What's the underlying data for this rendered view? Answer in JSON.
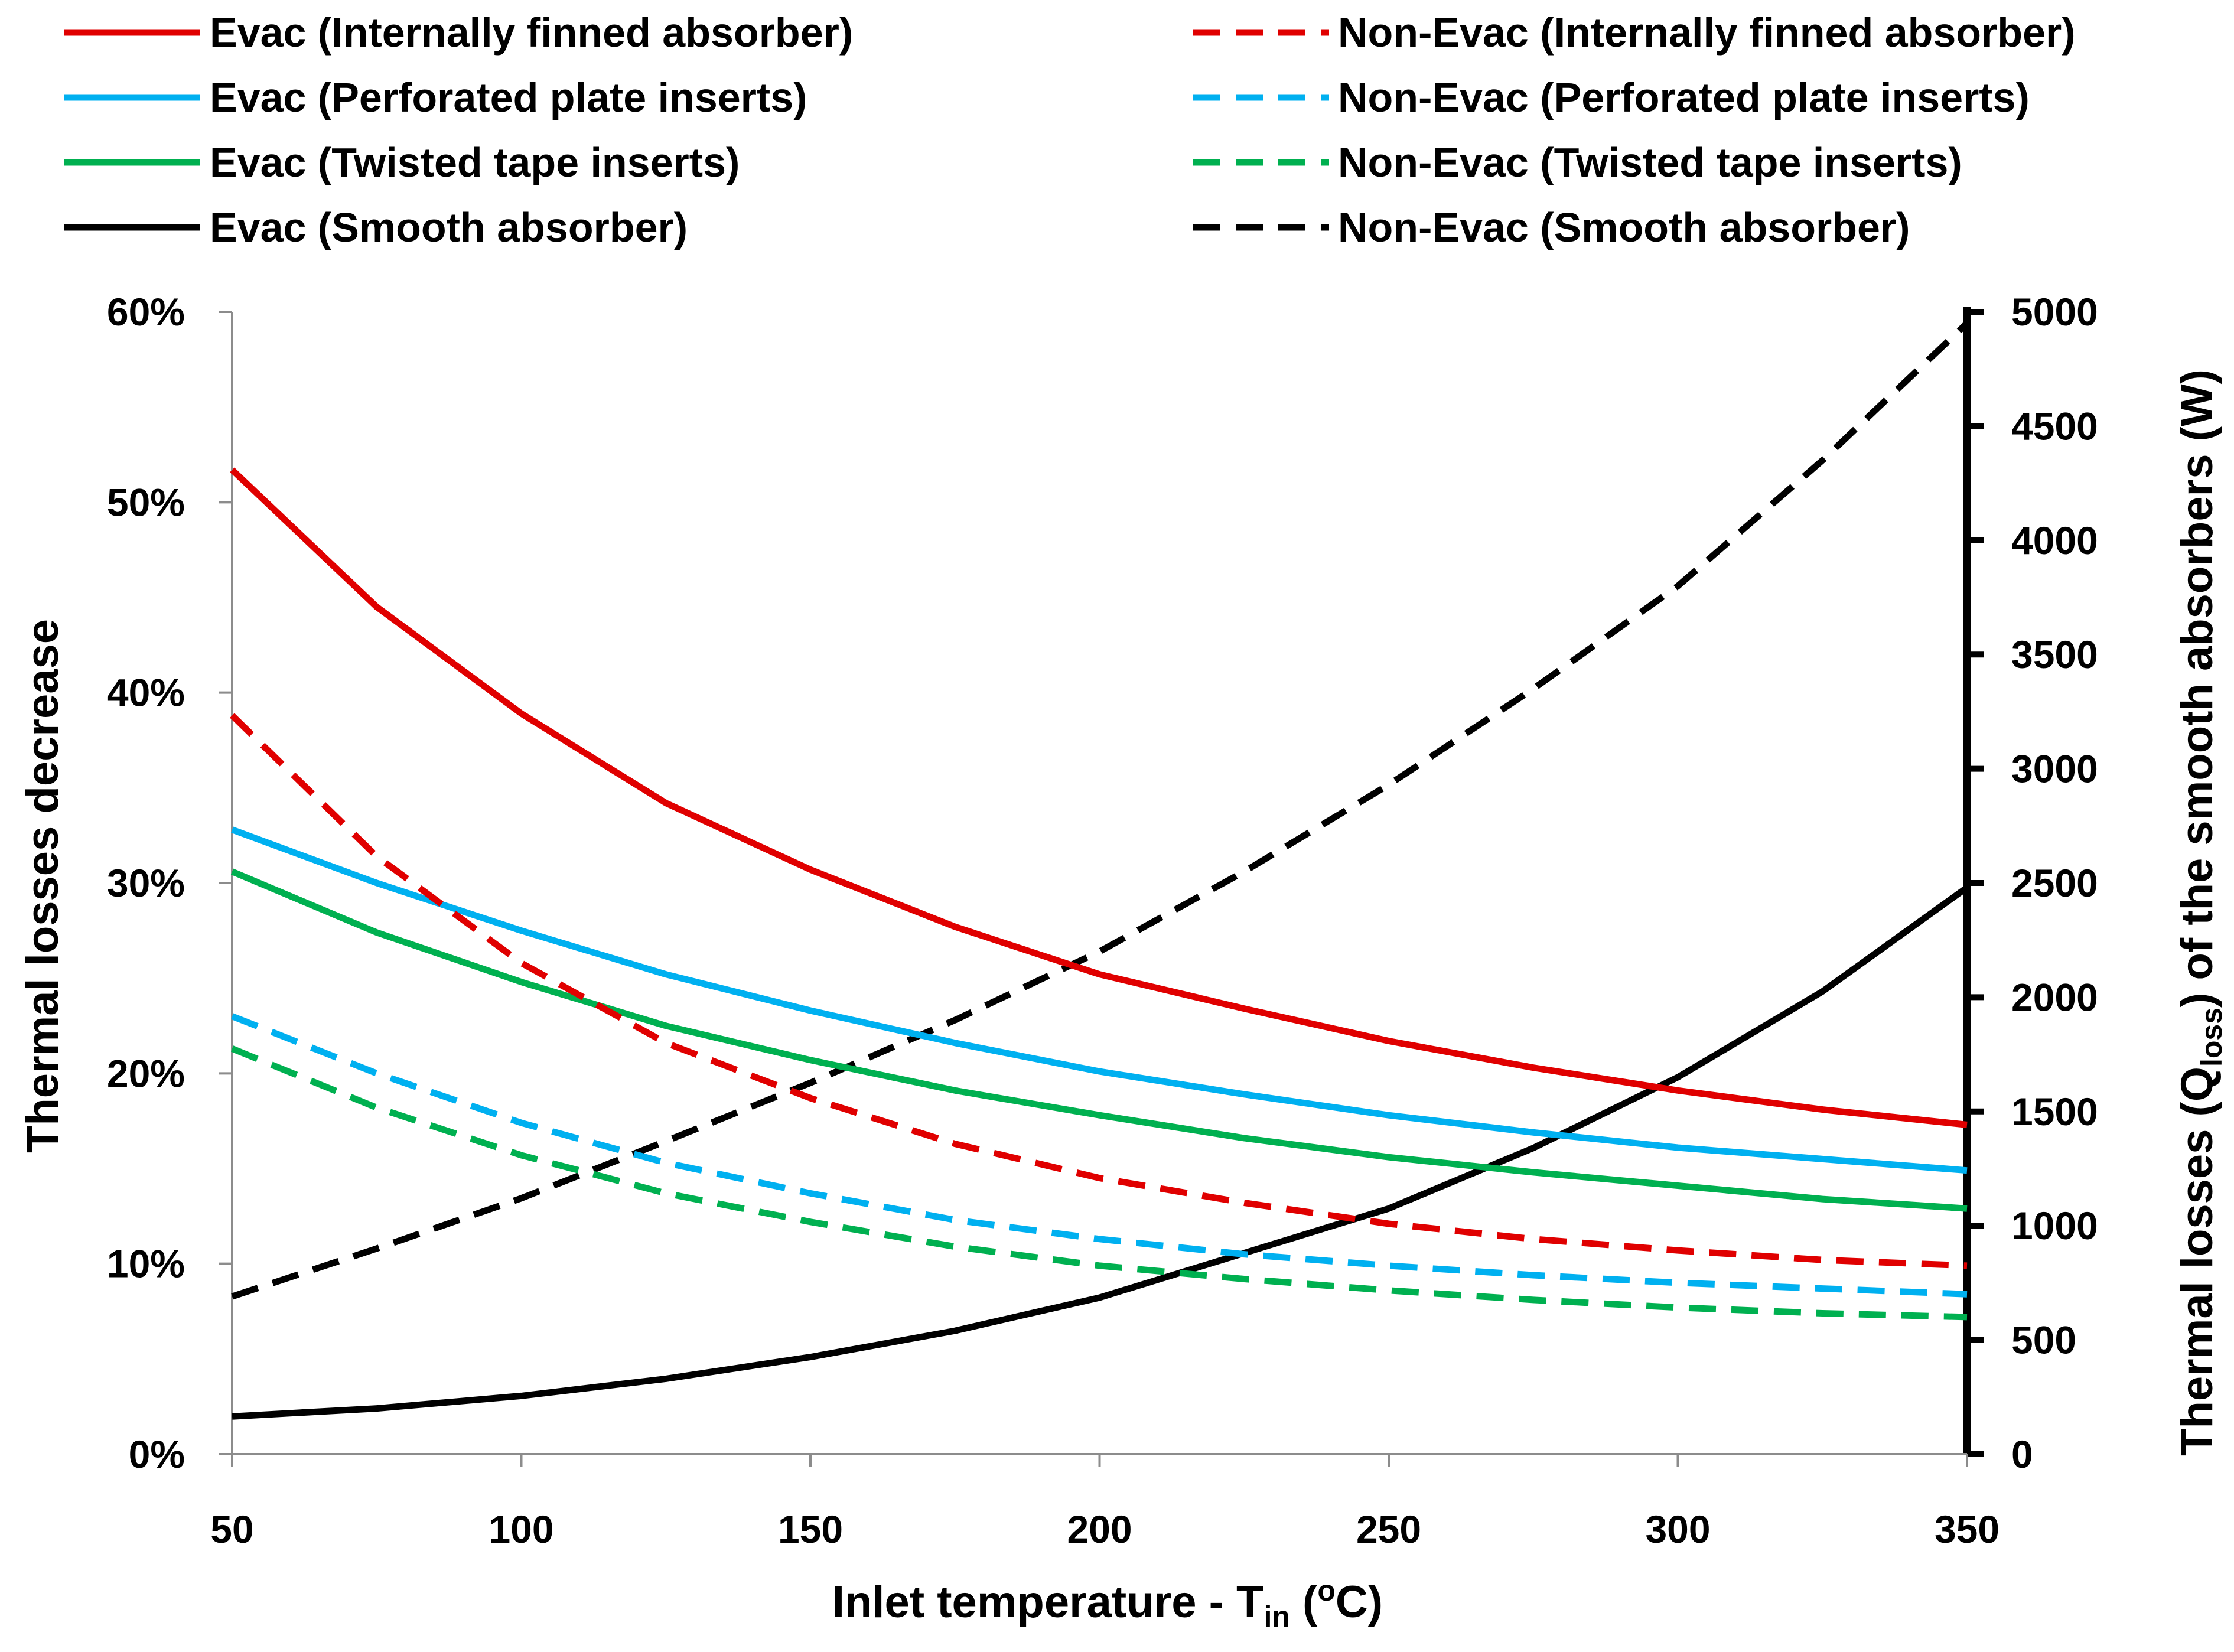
{
  "chart_data": {
    "type": "line",
    "title": "",
    "x": [
      50,
      75,
      100,
      125,
      150,
      175,
      200,
      225,
      250,
      275,
      300,
      325,
      350
    ],
    "xlim": [
      50,
      350
    ],
    "xticks": [
      50,
      100,
      150,
      200,
      250,
      300,
      350
    ],
    "xlabel": {
      "main": "Inlet temperature - T",
      "sub": "in",
      "open": " (",
      "sup": "o",
      "close": "C)"
    },
    "y_left": {
      "label": "Thermal losses decrease",
      "lim": [
        0,
        60
      ],
      "ticks": [
        0,
        10,
        20,
        30,
        40,
        50,
        60
      ],
      "unit": "%"
    },
    "y_right": {
      "label_pre": "Thermal losses (Q",
      "label_sub": "loss",
      "label_post": ") of the smooth absorbers (W)",
      "lim": [
        0,
        5000
      ],
      "ticks": [
        0,
        500,
        1000,
        1500,
        2000,
        2500,
        3000,
        3500,
        4000,
        4500,
        5000
      ]
    },
    "legend_position": "top",
    "series": [
      {
        "name": "Evac (Internally finned absorber)",
        "color": "#e00000",
        "dash": "solid",
        "axis": "left",
        "values": [
          51.7,
          44.5,
          38.9,
          34.2,
          30.7,
          27.7,
          25.2,
          23.4,
          21.7,
          20.3,
          19.1,
          18.1,
          17.3
        ]
      },
      {
        "name": "Non-Evac (Internally finned absorber)",
        "color": "#e00000",
        "dash": "dashed",
        "axis": "left",
        "values": [
          38.8,
          31.4,
          25.8,
          21.6,
          18.7,
          16.3,
          14.5,
          13.2,
          12.1,
          11.3,
          10.7,
          10.2,
          9.9
        ]
      },
      {
        "name": "Evac (Perforated plate inserts)",
        "color": "#00b0f0",
        "dash": "solid",
        "axis": "left",
        "values": [
          32.8,
          30.0,
          27.5,
          25.2,
          23.3,
          21.6,
          20.1,
          18.9,
          17.8,
          16.9,
          16.1,
          15.5,
          14.9
        ]
      },
      {
        "name": "Non-Evac (Perforated plate inserts)",
        "color": "#00b0f0",
        "dash": "dashed",
        "axis": "left",
        "values": [
          23.0,
          20.0,
          17.4,
          15.3,
          13.7,
          12.3,
          11.3,
          10.5,
          9.9,
          9.4,
          9.0,
          8.7,
          8.4
        ]
      },
      {
        "name": "Evac (Twisted tape inserts)",
        "color": "#00b050",
        "dash": "solid",
        "axis": "left",
        "values": [
          30.6,
          27.4,
          24.8,
          22.5,
          20.7,
          19.1,
          17.8,
          16.6,
          15.6,
          14.8,
          14.1,
          13.4,
          12.9
        ]
      },
      {
        "name": "Non-Evac (Twisted tape inserts)",
        "color": "#00b050",
        "dash": "dashed",
        "axis": "left",
        "values": [
          21.3,
          18.2,
          15.7,
          13.7,
          12.2,
          10.9,
          9.9,
          9.2,
          8.6,
          8.1,
          7.7,
          7.4,
          7.2
        ]
      },
      {
        "name": "Evac (Smooth absorber)",
        "color": "#000000",
        "dash": "solid",
        "axis": "right",
        "values": [
          165,
          200,
          255,
          330,
          425,
          540,
          685,
          880,
          1075,
          1340,
          1650,
          2025,
          2480
        ]
      },
      {
        "name": "Non-Evac (Smooth absorber)",
        "color": "#000000",
        "dash": "dashed",
        "axis": "right",
        "values": [
          690,
          900,
          1120,
          1370,
          1625,
          1900,
          2200,
          2550,
          2930,
          3350,
          3800,
          4350,
          4950
        ]
      }
    ]
  }
}
